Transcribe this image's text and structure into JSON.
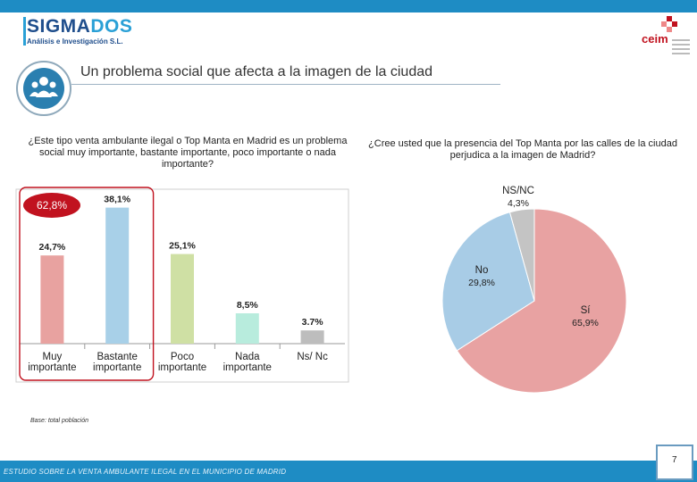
{
  "header": {
    "logo_name_part1": "SIGMA",
    "logo_name_part2": "DOS",
    "logo_subtitle": "Análisis e Investigación S.L.",
    "partner_logo": "ceim"
  },
  "title": "Un problema social que afecta a la imagen de la ciudad",
  "icon": "people-group-icon",
  "colors": {
    "brand_blue": "#1e8cc4",
    "highlight_red": "#c1121f"
  },
  "chart_data": [
    {
      "type": "bar",
      "title": "¿Este tipo venta ambulante ilegal o Top Manta  en Madrid es un problema social muy importante, bastante importante, poco importante o nada importante?",
      "categories": [
        [
          "Muy",
          "importante"
        ],
        [
          "Bastante",
          "importante"
        ],
        [
          "Poco",
          "importante"
        ],
        [
          "Nada",
          "importante"
        ],
        [
          "Ns/ Nc"
        ]
      ],
      "values": [
        24.7,
        38.1,
        25.1,
        8.5,
        3.7
      ],
      "value_labels": [
        "24,7%",
        "38,1%",
        "25,1%",
        "8,5%",
        "3.7%"
      ],
      "colors": [
        "#e8a2a0",
        "#a8d0e8",
        "#cfe0a4",
        "#b8ecdd",
        "#bdbdbd"
      ],
      "ylim": [
        0,
        40
      ],
      "highlight": {
        "label": "62,8%",
        "covers_categories": [
          "Muy importante",
          "Bastante importante"
        ]
      }
    },
    {
      "type": "pie",
      "title": "¿Cree usted que la presencia del Top Manta por las calles de la ciudad  perjudica  a la imagen de Madrid?",
      "slices": [
        {
          "label": "Sí",
          "value": 65.9,
          "value_label": "65,9%",
          "color": "#e8a2a2"
        },
        {
          "label": "No",
          "value": 29.8,
          "value_label": "29,8%",
          "color": "#a8cce6"
        },
        {
          "label": "NS/NC",
          "value": 4.3,
          "value_label": "4,3%",
          "color": "#c4c4c4"
        }
      ]
    }
  ],
  "base_note": "Base: total población",
  "footer": {
    "text": "ESTUDIO SOBRE LA VENTA AMBULANTE ILEGAL EN EL MUNICIPIO DE MADRID",
    "page_number": "7"
  }
}
